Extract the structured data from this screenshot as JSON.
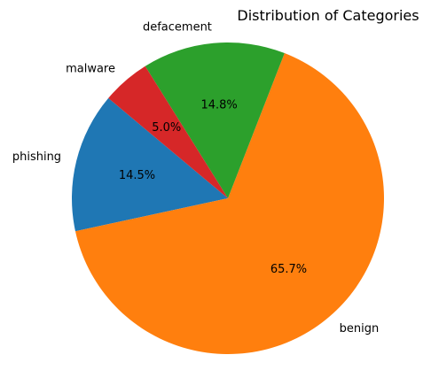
{
  "chart_data": {
    "type": "pie",
    "title": "Distribution of Categories",
    "start_angle_deg": 140,
    "direction": "counterclockwise",
    "slices": [
      {
        "label": "phishing",
        "value": 14.5,
        "pct_label": "14.5%",
        "color": "#1f77b4"
      },
      {
        "label": "benign",
        "value": 65.7,
        "pct_label": "65.7%",
        "color": "#ff7f0e"
      },
      {
        "label": "defacement",
        "value": 14.8,
        "pct_label": "14.8%",
        "color": "#2ca02c"
      },
      {
        "label": "malware",
        "value": 5.0,
        "pct_label": "5.0%",
        "color": "#d62728"
      }
    ]
  }
}
